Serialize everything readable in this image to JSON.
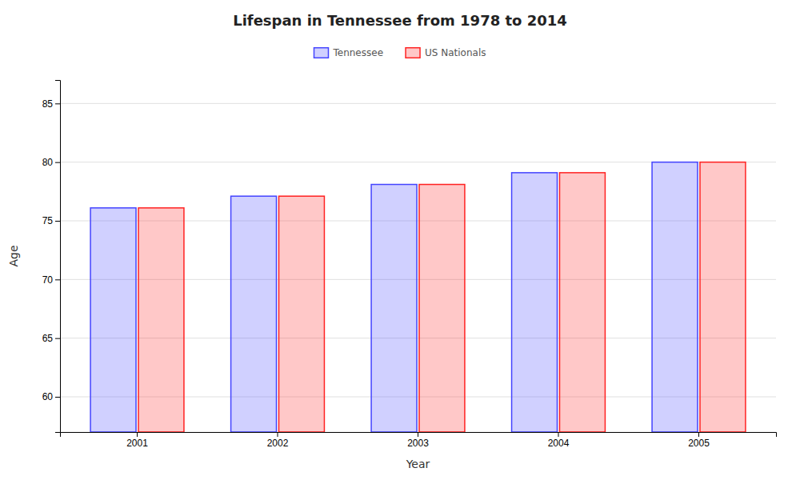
{
  "chart_data": {
    "type": "bar",
    "title": "Lifespan in Tennessee from 1978 to 2014",
    "xlabel": "Year",
    "ylabel": "Age",
    "categories": [
      "2001",
      "2002",
      "2003",
      "2004",
      "2005"
    ],
    "series": [
      {
        "name": "Tennessee",
        "color": "#4444ff",
        "values": [
          76.1,
          77.1,
          78.1,
          79.1,
          80.0
        ]
      },
      {
        "name": "US Nationals",
        "color": "#ff2222",
        "values": [
          76.1,
          77.1,
          78.1,
          79.1,
          80.0
        ]
      }
    ],
    "ylim": [
      57,
      87
    ],
    "yticks": [
      60,
      65,
      70,
      75,
      80,
      85
    ],
    "grid": true,
    "legend": "top"
  }
}
